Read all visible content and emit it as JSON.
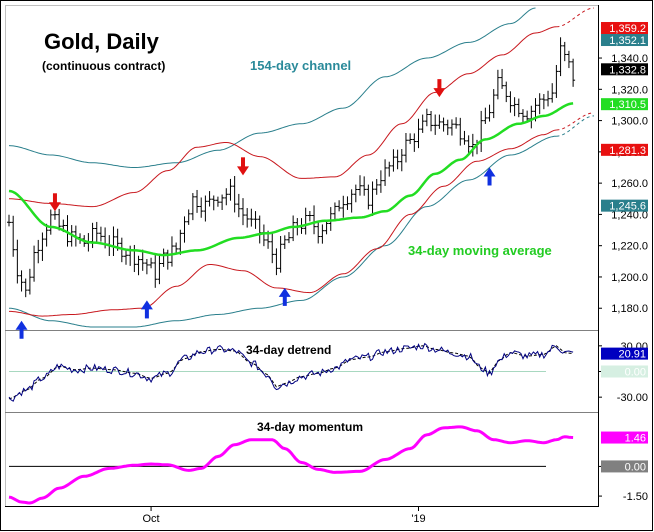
{
  "colors": {
    "channel154": "#2a7f8c",
    "channel34": "#c8181e",
    "ma34": "#22dd22",
    "price": "#000000",
    "detrend": "#000080",
    "momentum": "#ff00ff",
    "arrow_down": "#e01010",
    "arrow_up": "#1030e0",
    "ann_channel": "#2a8a9a",
    "ann_ma": "#22cc22"
  },
  "chart_data": [
    {
      "type": "line",
      "panel": "price",
      "title": "Gold, Daily",
      "subtitle": "(continuous contract)",
      "annotations": {
        "channel_label": "154-day channel",
        "ma_label": "34-day moving average"
      },
      "ylim": [
        1168,
        1372
      ],
      "yticks": [
        1180,
        1200,
        1220,
        1240,
        1260,
        1280,
        1300,
        1320,
        1340
      ],
      "ytick_labels": [
        "1,180.0",
        "1,200.0",
        "1,220.0",
        "1,240.0",
        "1,260.0",
        "1,280.0",
        "1,300.0",
        "1,320.0",
        "1,340.0"
      ],
      "x_count": 140,
      "xticks": [
        {
          "index": 34,
          "label": "Oct"
        },
        {
          "index": 98,
          "label": "'19"
        }
      ],
      "price_anchors": [
        [
          0,
          1235
        ],
        [
          2,
          1205
        ],
        [
          4,
          1190
        ],
        [
          6,
          1215
        ],
        [
          8,
          1228
        ],
        [
          10,
          1238
        ],
        [
          12,
          1232
        ],
        [
          15,
          1225
        ],
        [
          18,
          1222
        ],
        [
          21,
          1228
        ],
        [
          24,
          1222
        ],
        [
          27,
          1218
        ],
        [
          30,
          1213
        ],
        [
          33,
          1208
        ],
        [
          35,
          1202
        ],
        [
          37,
          1212
        ],
        [
          40,
          1218
        ],
        [
          42,
          1238
        ],
        [
          44,
          1250
        ],
        [
          47,
          1246
        ],
        [
          50,
          1252
        ],
        [
          53,
          1254
        ],
        [
          56,
          1240
        ],
        [
          59,
          1232
        ],
        [
          62,
          1220
        ],
        [
          64,
          1210
        ],
        [
          66,
          1222
        ],
        [
          69,
          1233
        ],
        [
          72,
          1236
        ],
        [
          74,
          1230
        ],
        [
          77,
          1238
        ],
        [
          80,
          1250
        ],
        [
          83,
          1256
        ],
        [
          86,
          1250
        ],
        [
          89,
          1265
        ],
        [
          92,
          1272
        ],
        [
          95,
          1285
        ],
        [
          98,
          1292
        ],
        [
          100,
          1300
        ],
        [
          103,
          1298
        ],
        [
          106,
          1297
        ],
        [
          109,
          1292
        ],
        [
          111,
          1283
        ],
        [
          113,
          1295
        ],
        [
          115,
          1307
        ],
        [
          117,
          1323
        ],
        [
          119,
          1318
        ],
        [
          121,
          1310
        ],
        [
          124,
          1305
        ],
        [
          127,
          1312
        ],
        [
          130,
          1318
        ],
        [
          132,
          1345
        ],
        [
          134,
          1335
        ],
        [
          135,
          1328
        ]
      ],
      "ma34_anchors": [
        [
          0,
          1255
        ],
        [
          10,
          1232
        ],
        [
          20,
          1222
        ],
        [
          30,
          1217
        ],
        [
          37,
          1214
        ],
        [
          45,
          1217
        ],
        [
          55,
          1225
        ],
        [
          62,
          1228
        ],
        [
          68,
          1232
        ],
        [
          76,
          1236
        ],
        [
          84,
          1238
        ],
        [
          90,
          1242
        ],
        [
          96,
          1252
        ],
        [
          102,
          1266
        ],
        [
          108,
          1275
        ],
        [
          114,
          1288
        ],
        [
          122,
          1298
        ],
        [
          128,
          1303
        ],
        [
          135,
          1311
        ]
      ],
      "channel34_upper_anchors": [
        [
          0,
          1250
        ],
        [
          10,
          1247
        ],
        [
          20,
          1245
        ],
        [
          30,
          1254
        ],
        [
          38,
          1268
        ],
        [
          45,
          1283
        ],
        [
          52,
          1286
        ],
        [
          60,
          1277
        ],
        [
          70,
          1263
        ],
        [
          78,
          1264
        ],
        [
          86,
          1278
        ],
        [
          94,
          1298
        ],
        [
          102,
          1318
        ],
        [
          110,
          1330
        ],
        [
          118,
          1342
        ],
        [
          126,
          1356
        ],
        [
          131,
          1360
        ],
        [
          140,
          1372
        ]
      ],
      "channel34_lower_anchors": [
        [
          0,
          1178
        ],
        [
          8,
          1175
        ],
        [
          15,
          1176
        ],
        [
          25,
          1179
        ],
        [
          32,
          1180
        ],
        [
          40,
          1194
        ],
        [
          48,
          1208
        ],
        [
          56,
          1204
        ],
        [
          64,
          1193
        ],
        [
          72,
          1190
        ],
        [
          80,
          1202
        ],
        [
          88,
          1218
        ],
        [
          96,
          1240
        ],
        [
          104,
          1258
        ],
        [
          112,
          1274
        ],
        [
          120,
          1282
        ],
        [
          128,
          1291
        ],
        [
          131,
          1294
        ],
        [
          140,
          1305
        ]
      ],
      "channel154_upper_anchors": [
        [
          0,
          1284
        ],
        [
          10,
          1278
        ],
        [
          20,
          1273
        ],
        [
          30,
          1270
        ],
        [
          40,
          1273
        ],
        [
          50,
          1281
        ],
        [
          60,
          1292
        ],
        [
          70,
          1298
        ],
        [
          80,
          1308
        ],
        [
          90,
          1328
        ],
        [
          100,
          1340
        ],
        [
          110,
          1350
        ],
        [
          120,
          1362
        ],
        [
          126,
          1372
        ]
      ],
      "channel154_lower_anchors": [
        [
          0,
          1180
        ],
        [
          10,
          1172
        ],
        [
          20,
          1168
        ],
        [
          30,
          1168
        ],
        [
          40,
          1172
        ],
        [
          50,
          1176
        ],
        [
          60,
          1180
        ],
        [
          70,
          1185
        ],
        [
          80,
          1200
        ],
        [
          90,
          1220
        ],
        [
          100,
          1245
        ],
        [
          110,
          1262
        ],
        [
          120,
          1278
        ],
        [
          131,
          1290
        ],
        [
          140,
          1303
        ]
      ],
      "projection_from_index": 131,
      "down_arrows": [
        {
          "index": 11,
          "value": 1242
        },
        {
          "index": 56,
          "value": 1265
        },
        {
          "index": 103,
          "value": 1315
        }
      ],
      "up_arrows": [
        {
          "index": 3,
          "value": 1172
        },
        {
          "index": 33,
          "value": 1185
        },
        {
          "index": 66,
          "value": 1193
        },
        {
          "index": 115,
          "value": 1270
        }
      ],
      "value_tags": [
        {
          "value": 1359.2,
          "label": "1,359.2",
          "bg": "#e81010",
          "fg": "#ffffff"
        },
        {
          "value": 1352.1,
          "label": "1,352.1",
          "bg": "#2a7f8c",
          "fg": "#ffffff"
        },
        {
          "value": 1332.8,
          "label": "1,332.8",
          "bg": "#000000",
          "fg": "#ffffff"
        },
        {
          "value": 1310.5,
          "label": "1,310.5",
          "bg": "#22dd22",
          "fg": "#ffffff"
        },
        {
          "value": 1281.3,
          "label": "1,281.3",
          "bg": "#e81010",
          "fg": "#ffffff"
        },
        {
          "value": 1245.6,
          "label": "1,245.6",
          "bg": "#2a7f8c",
          "fg": "#ffffff"
        }
      ]
    },
    {
      "type": "line",
      "panel": "detrend",
      "title": "34-day detrend",
      "ylim": [
        -45,
        45
      ],
      "yticks": [
        30,
        0,
        -30
      ],
      "ytick_labels": [
        "30.00",
        "0.00",
        "-30.00"
      ],
      "zero_line": 0,
      "series_anchors": [
        [
          0,
          -32
        ],
        [
          4,
          -22
        ],
        [
          8,
          -8
        ],
        [
          12,
          6
        ],
        [
          16,
          2
        ],
        [
          20,
          4
        ],
        [
          25,
          2
        ],
        [
          30,
          -2
        ],
        [
          34,
          -8
        ],
        [
          38,
          -2
        ],
        [
          42,
          15
        ],
        [
          46,
          23
        ],
        [
          50,
          26
        ],
        [
          54,
          24
        ],
        [
          58,
          10
        ],
        [
          62,
          -4
        ],
        [
          64,
          -18
        ],
        [
          66,
          -14
        ],
        [
          70,
          -6
        ],
        [
          74,
          -2
        ],
        [
          78,
          4
        ],
        [
          82,
          14
        ],
        [
          86,
          17
        ],
        [
          90,
          23
        ],
        [
          95,
          27
        ],
        [
          99,
          30
        ],
        [
          102,
          26
        ],
        [
          106,
          22
        ],
        [
          110,
          18
        ],
        [
          113,
          4
        ],
        [
          115,
          -2
        ],
        [
          117,
          12
        ],
        [
          120,
          22
        ],
        [
          124,
          18
        ],
        [
          128,
          20
        ],
        [
          131,
          30
        ],
        [
          133,
          22
        ],
        [
          135,
          21
        ]
      ],
      "value_tags": [
        {
          "value": 20.91,
          "label": "20.91",
          "bg": "#0000c0",
          "fg": "#ffffff"
        },
        {
          "value": 0,
          "label": "0.00",
          "bg": "#d6efe2",
          "fg": "#ffffff"
        }
      ]
    },
    {
      "type": "line",
      "panel": "momentum",
      "title": "34-day momentum",
      "ylim": [
        -1.9,
        2.6
      ],
      "yticks": [
        0,
        -1.5
      ],
      "ytick_labels": [
        "0.00",
        "-1.50"
      ],
      "zero_line": 0,
      "series_anchors": [
        [
          0,
          -1.55
        ],
        [
          3,
          -1.8
        ],
        [
          5,
          -1.85
        ],
        [
          8,
          -1.6
        ],
        [
          12,
          -1.1
        ],
        [
          18,
          -0.5
        ],
        [
          24,
          -0.1
        ],
        [
          30,
          0.06
        ],
        [
          34,
          0.12
        ],
        [
          38,
          0.08
        ],
        [
          43,
          -0.2
        ],
        [
          46,
          -0.1
        ],
        [
          50,
          0.5
        ],
        [
          54,
          1.1
        ],
        [
          58,
          1.35
        ],
        [
          63,
          1.35
        ],
        [
          66,
          0.9
        ],
        [
          70,
          0.2
        ],
        [
          74,
          -0.15
        ],
        [
          78,
          -0.3
        ],
        [
          84,
          -0.25
        ],
        [
          90,
          0.35
        ],
        [
          96,
          0.9
        ],
        [
          100,
          1.6
        ],
        [
          104,
          1.95
        ],
        [
          108,
          2.0
        ],
        [
          112,
          1.8
        ],
        [
          116,
          1.35
        ],
        [
          120,
          1.2
        ],
        [
          124,
          1.3
        ],
        [
          128,
          1.2
        ],
        [
          131,
          1.35
        ],
        [
          133,
          1.5
        ],
        [
          135,
          1.46
        ]
      ],
      "value_tags": [
        {
          "value": 1.46,
          "label": "1.46",
          "bg": "#ff00ff",
          "fg": "#ffffff"
        },
        {
          "value": 0,
          "label": "0.00",
          "bg": "#808080",
          "fg": "#ffffff"
        }
      ]
    }
  ]
}
